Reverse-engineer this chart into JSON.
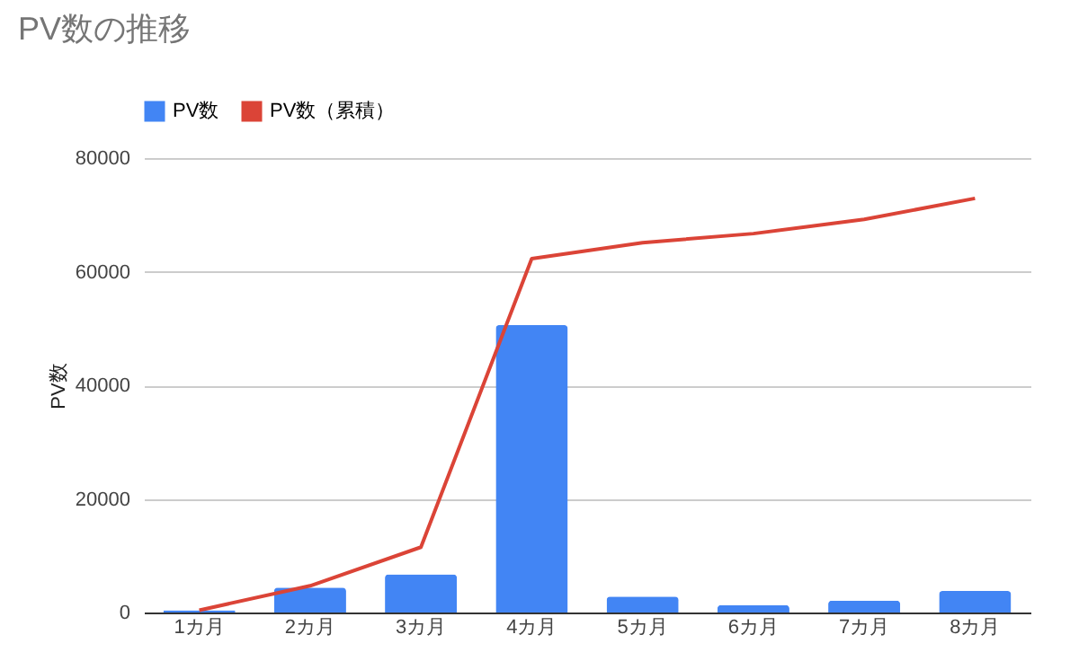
{
  "chart_data": {
    "type": "bar",
    "title": "PV数の推移",
    "ylabel": "PV数",
    "categories": [
      "1カ月",
      "2カ月",
      "3カ月",
      "4カ月",
      "5カ月",
      "6カ月",
      "7カ月",
      "8カ月"
    ],
    "series": [
      {
        "name": "PV数",
        "color": "#4285f4",
        "values": [
          400,
          4400,
          6700,
          50600,
          2800,
          1300,
          2100,
          3800
        ]
      },
      {
        "name": "PV数（累積）",
        "type": "line",
        "color": "#db4437",
        "values": [
          400,
          4700,
          11500,
          62300,
          65100,
          66700,
          69200,
          72900
        ]
      }
    ],
    "ylim": [
      0,
      80000
    ],
    "yticks": [
      0,
      20000,
      40000,
      60000,
      80000
    ],
    "grid": "y",
    "legend": "top"
  }
}
